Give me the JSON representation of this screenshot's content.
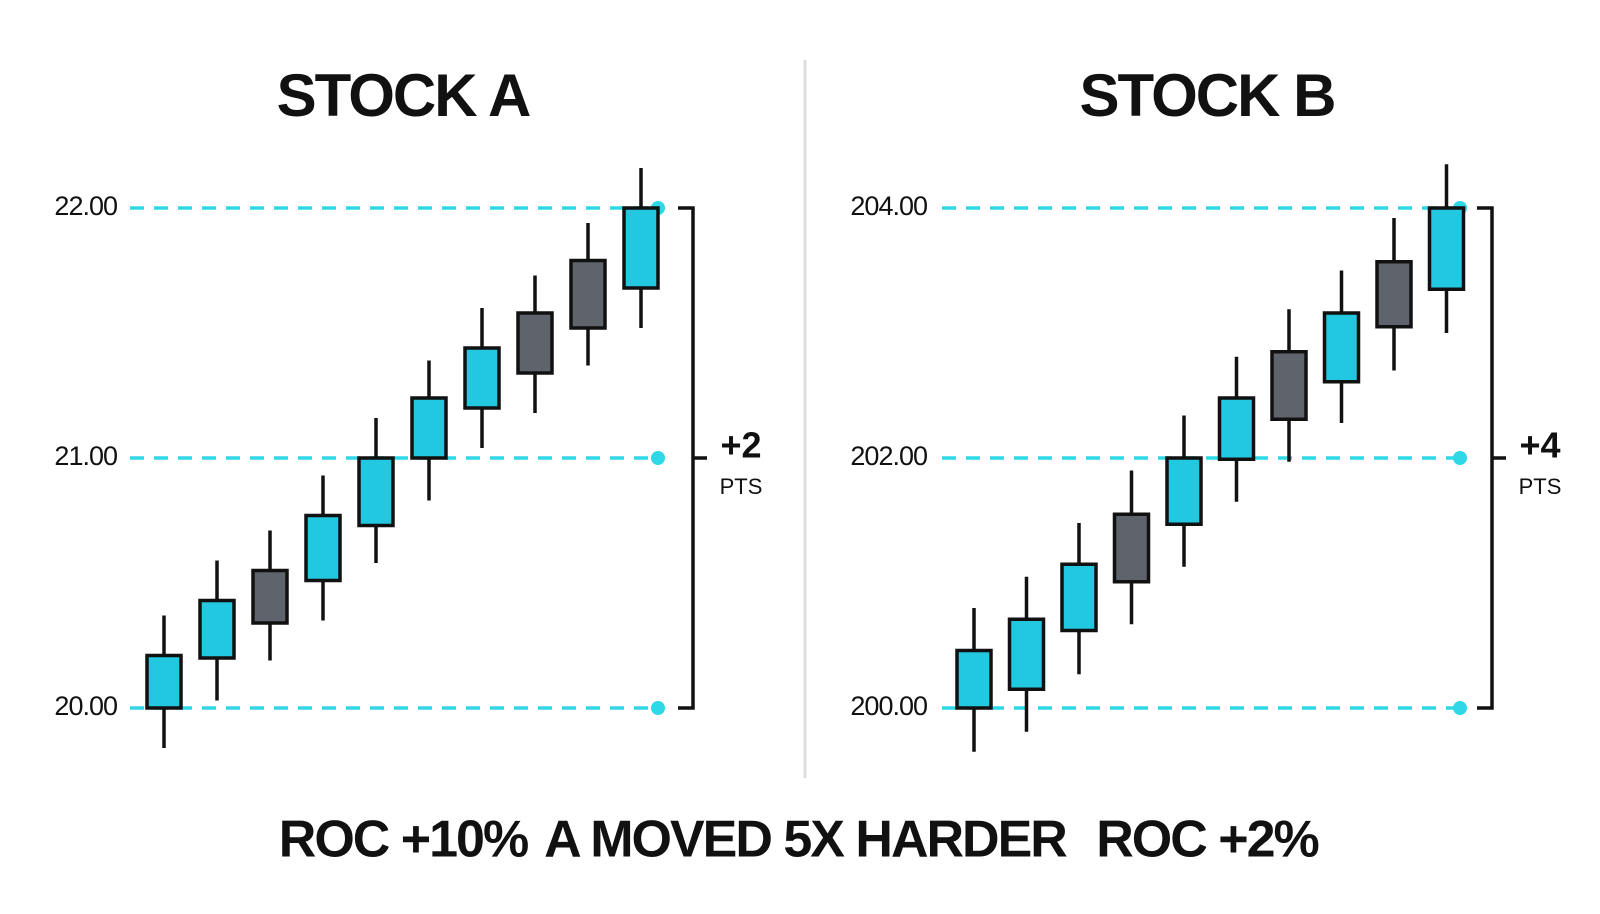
{
  "chart_data": [
    {
      "type": "candlestick",
      "title": "STOCK A",
      "open": [
        20.0,
        20.2,
        20.55,
        20.51,
        20.73,
        21.0,
        21.2,
        21.58,
        21.79,
        21.68
      ],
      "high": [
        20.37,
        20.59,
        20.71,
        20.93,
        21.16,
        21.39,
        21.6,
        21.73,
        21.94,
        22.16
      ],
      "low": [
        19.84,
        20.03,
        20.19,
        20.35,
        20.58,
        20.83,
        21.04,
        21.18,
        21.37,
        21.52
      ],
      "close": [
        20.21,
        20.43,
        20.34,
        20.77,
        21.0,
        21.24,
        21.44,
        21.34,
        21.52,
        22.0
      ],
      "up_color": "#22c8e0",
      "down_color": "#5f646c",
      "ylim": [
        19.75,
        22.25
      ],
      "yticks": [
        {
          "value": 20,
          "label": "20.00"
        },
        {
          "value": 21,
          "label": "21.00"
        },
        {
          "value": 22,
          "label": "22.00"
        }
      ],
      "grid": true,
      "grid_color": "#2fd8e6",
      "annotation": "+2",
      "annotation_unit": "PTS",
      "roc_label": "ROC +10%"
    },
    {
      "type": "candlestick",
      "title": "STOCK B",
      "open": [
        200.0,
        200.15,
        200.62,
        201.55,
        201.47,
        201.99,
        202.85,
        202.61,
        203.57,
        203.35
      ],
      "high": [
        200.8,
        201.05,
        201.48,
        201.9,
        202.34,
        202.81,
        203.19,
        203.5,
        203.92,
        204.35
      ],
      "low": [
        199.65,
        199.81,
        200.27,
        200.67,
        201.13,
        201.65,
        201.97,
        202.28,
        202.7,
        203.0
      ],
      "close": [
        200.46,
        200.71,
        201.15,
        201.01,
        202.0,
        202.48,
        202.31,
        203.16,
        203.05,
        204.0
      ],
      "up_color": "#22c8e0",
      "down_color": "#5f646c",
      "ylim": [
        199.5,
        204.5
      ],
      "yticks": [
        {
          "value": 200,
          "label": "200.00"
        },
        {
          "value": 202,
          "label": "202.00"
        },
        {
          "value": 204,
          "label": "204.00"
        }
      ],
      "grid": true,
      "grid_color": "#2fd8e6",
      "annotation": "+4",
      "annotation_unit": "PTS",
      "roc_label": "ROC +2%"
    }
  ],
  "caption": "A MOVED 5X HARDER"
}
